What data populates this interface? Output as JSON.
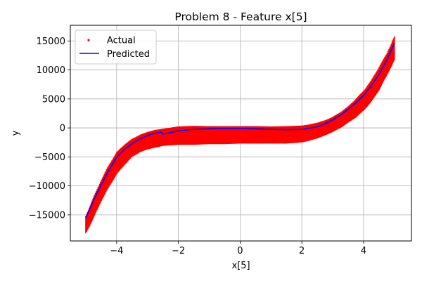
{
  "chart_data": {
    "type": "scatter",
    "title": "Problem 8 - Feature x[5]",
    "xlabel": "x[5]",
    "ylabel": "y",
    "xlim": [
      -5.5,
      5.55
    ],
    "ylim": [
      -19500,
      17700
    ],
    "xticks": [
      -4,
      -2,
      0,
      2,
      4
    ],
    "yticks": [
      -15000,
      -10000,
      -5000,
      0,
      5000,
      10000,
      15000
    ],
    "grid": true,
    "legend_position": "top-left",
    "series": [
      {
        "name": "Actual",
        "kind": "scatter-band",
        "color": "#ff0000",
        "x": [
          -5.0,
          -4.75,
          -4.5,
          -4.25,
          -4.0,
          -3.75,
          -3.5,
          -3.25,
          -3.0,
          -2.75,
          -2.5,
          -2.25,
          -2.0,
          -1.5,
          -1.0,
          -0.5,
          0.0,
          0.5,
          1.0,
          1.5,
          2.0,
          2.25,
          2.5,
          2.75,
          3.0,
          3.25,
          3.5,
          3.75,
          4.0,
          4.25,
          4.5,
          4.75,
          5.0
        ],
        "y_upper": [
          -15200,
          -12000,
          -9000,
          -6400,
          -4200,
          -2900,
          -1900,
          -1200,
          -700,
          -350,
          -150,
          50,
          250,
          350,
          300,
          300,
          300,
          300,
          250,
          300,
          400,
          600,
          900,
          1300,
          1900,
          2700,
          3700,
          5000,
          6400,
          8200,
          10500,
          12800,
          15800
        ],
        "y_lower": [
          -18200,
          -15600,
          -12600,
          -10200,
          -8000,
          -6400,
          -5000,
          -4200,
          -3700,
          -3400,
          -3100,
          -3000,
          -2900,
          -2900,
          -2800,
          -2800,
          -2700,
          -2700,
          -2700,
          -2700,
          -2500,
          -2200,
          -1800,
          -1300,
          -700,
          0,
          900,
          1800,
          3000,
          4500,
          6500,
          9000,
          11700
        ]
      },
      {
        "name": "Predicted",
        "kind": "line",
        "color": "#0000ff",
        "x": [
          -5.0,
          -4.75,
          -4.5,
          -4.25,
          -4.0,
          -3.75,
          -3.5,
          -3.25,
          -3.0,
          -2.75,
          -2.55,
          -2.5,
          -2.25,
          -2.0,
          -1.5,
          -1.0,
          -0.5,
          0.0,
          0.5,
          1.0,
          1.5,
          2.0,
          2.5,
          2.75,
          3.0,
          3.25,
          3.5,
          3.75,
          4.0,
          4.25,
          4.5,
          4.75,
          5.0
        ],
        "y": [
          -15500,
          -12500,
          -9800,
          -7300,
          -5100,
          -3700,
          -2700,
          -1900,
          -1300,
          -900,
          -750,
          -1100,
          -800,
          -500,
          -250,
          -150,
          -100,
          -100,
          -150,
          -250,
          -300,
          -250,
          200,
          700,
          1400,
          2200,
          3200,
          4300,
          5600,
          7300,
          9200,
          11700,
          14600
        ]
      }
    ]
  }
}
